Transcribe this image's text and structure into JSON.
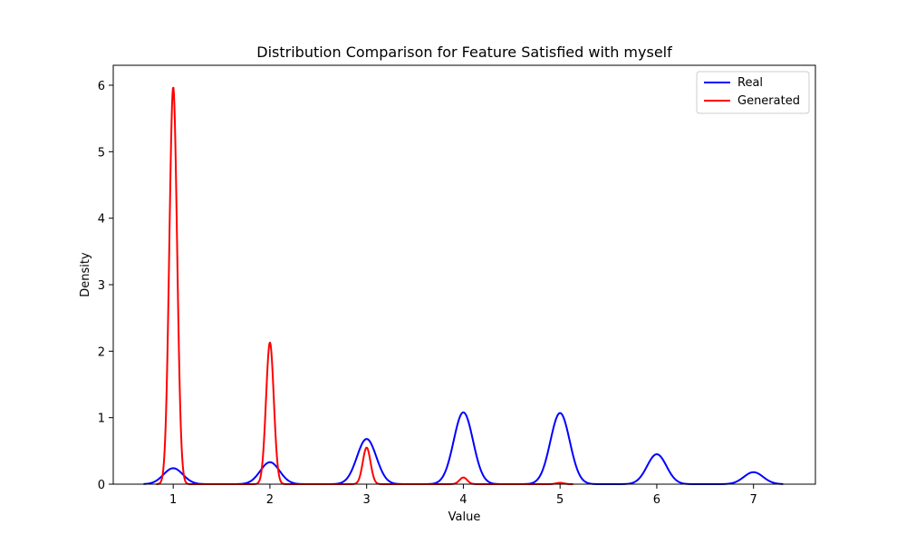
{
  "chart_data": {
    "type": "line",
    "title": "Distribution Comparison for Feature Satisfied with myself",
    "xlabel": "Value",
    "ylabel": "Density",
    "xlim": [
      0.38,
      7.64
    ],
    "ylim": [
      0,
      6.3
    ],
    "xticks": [
      1,
      2,
      3,
      4,
      5,
      6,
      7
    ],
    "yticks": [
      0,
      1,
      2,
      3,
      4,
      5,
      6
    ],
    "grid": false,
    "legend_position": "top-right",
    "series": [
      {
        "name": "Real",
        "color": "#0000ff",
        "x_range": [
          0.7,
          7.3
        ],
        "peaks": [
          {
            "x": 1,
            "y": 0.24,
            "sigma": 0.1
          },
          {
            "x": 2,
            "y": 0.33,
            "sigma": 0.1
          },
          {
            "x": 3,
            "y": 0.68,
            "sigma": 0.1
          },
          {
            "x": 4,
            "y": 1.08,
            "sigma": 0.1
          },
          {
            "x": 5,
            "y": 1.07,
            "sigma": 0.1
          },
          {
            "x": 6,
            "y": 0.45,
            "sigma": 0.1
          },
          {
            "x": 7,
            "y": 0.18,
            "sigma": 0.1
          }
        ]
      },
      {
        "name": "Generated",
        "color": "#ff0000",
        "x_range": [
          0.83,
          5.13
        ],
        "peaks": [
          {
            "x": 1,
            "y": 5.97,
            "sigma": 0.04
          },
          {
            "x": 2,
            "y": 2.13,
            "sigma": 0.04
          },
          {
            "x": 3,
            "y": 0.55,
            "sigma": 0.04
          },
          {
            "x": 4,
            "y": 0.1,
            "sigma": 0.04
          },
          {
            "x": 5,
            "y": 0.02,
            "sigma": 0.04
          }
        ]
      }
    ]
  }
}
